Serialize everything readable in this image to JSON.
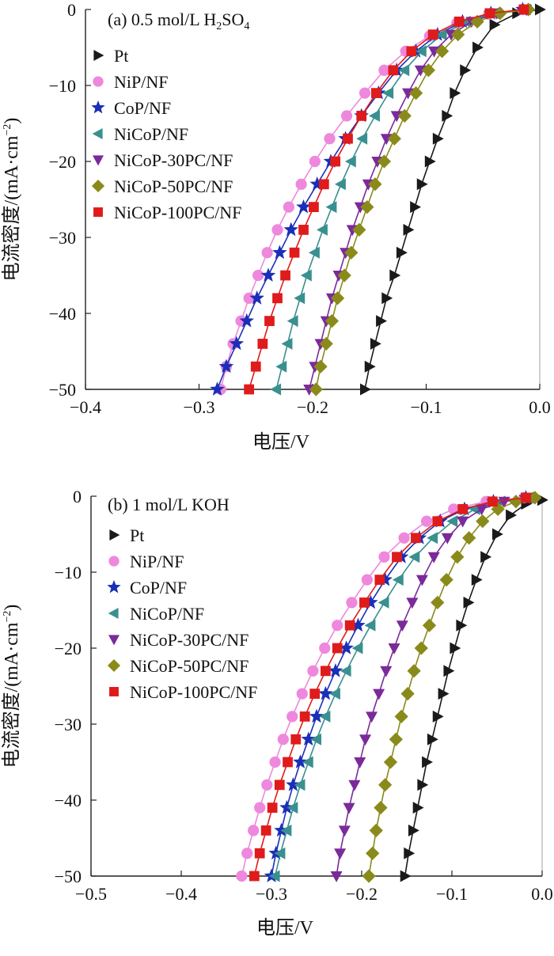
{
  "chart_data": [
    {
      "type": "line",
      "title": "(a) 0.5 mol/L H",
      "title_sub": "2",
      "title_mid": "SO",
      "title_sub2": "4",
      "xlabel": "电压/V",
      "ylabel": "电流密度/(mA·cm",
      "ylabel_sup": "−2",
      "ylabel_end": ")",
      "xlim": [
        -0.4,
        0.0
      ],
      "ylim": [
        -50,
        0
      ],
      "xticks": [
        -0.4,
        -0.3,
        -0.2,
        -0.1,
        0.0
      ],
      "xtick_labels": [
        "−0.4",
        "−0.3",
        "−0.2",
        "−0.1",
        "0.0"
      ],
      "yticks": [
        0,
        -10,
        -20,
        -30,
        -40,
        -50
      ],
      "ytick_labels": [
        "0",
        "−10",
        "−20",
        "−30",
        "−40",
        "−50"
      ],
      "legend_position": "top-left",
      "series": [
        {
          "name": "Pt",
          "color": "#1a1a1a",
          "marker": "triangle-right",
          "x": [
            -0.154,
            -0.15,
            -0.145,
            -0.14,
            -0.135,
            -0.128,
            -0.122,
            -0.116,
            -0.11,
            -0.104,
            -0.097,
            -0.09,
            -0.082,
            -0.075,
            -0.066,
            -0.055,
            -0.04,
            -0.02,
            0.0
          ],
          "y": [
            -50,
            -47,
            -44,
            -41,
            -38,
            -35,
            -32,
            -29,
            -26,
            -23,
            -20,
            -17,
            -14,
            -11,
            -8,
            -5,
            -2,
            -0.5,
            0
          ]
        },
        {
          "name": "NiP/NF",
          "color": "#ee88dd",
          "marker": "circle",
          "x": [
            -0.281,
            -0.276,
            -0.27,
            -0.263,
            -0.256,
            -0.248,
            -0.24,
            -0.231,
            -0.221,
            -0.21,
            -0.198,
            -0.185,
            -0.17,
            -0.154,
            -0.137,
            -0.118,
            -0.097,
            -0.073,
            -0.045,
            -0.015
          ],
          "y": [
            -50,
            -47,
            -44,
            -41,
            -38,
            -35,
            -32,
            -29,
            -26,
            -23,
            -20,
            -17,
            -14,
            -11,
            -8,
            -5.5,
            -3.5,
            -1.8,
            -0.6,
            0
          ]
        },
        {
          "name": "CoP/NF",
          "color": "#1a2fb8",
          "marker": "star",
          "x": [
            -0.284,
            -0.276,
            -0.267,
            -0.258,
            -0.249,
            -0.239,
            -0.229,
            -0.219,
            -0.208,
            -0.196,
            -0.184,
            -0.171,
            -0.157,
            -0.142,
            -0.126,
            -0.109,
            -0.09,
            -0.068,
            -0.043,
            -0.015
          ],
          "y": [
            -50,
            -47,
            -44,
            -41,
            -38,
            -35,
            -32,
            -29,
            -26,
            -23,
            -20,
            -17,
            -14,
            -11,
            -8,
            -5.5,
            -3.3,
            -1.6,
            -0.5,
            0
          ]
        },
        {
          "name": "NiCoP/NF",
          "color": "#3a8f8f",
          "marker": "triangle-left",
          "x": [
            -0.232,
            -0.227,
            -0.222,
            -0.217,
            -0.211,
            -0.205,
            -0.198,
            -0.191,
            -0.183,
            -0.175,
            -0.166,
            -0.156,
            -0.145,
            -0.133,
            -0.119,
            -0.104,
            -0.086,
            -0.065,
            -0.04,
            -0.012
          ],
          "y": [
            -50,
            -47,
            -44,
            -41,
            -38,
            -35,
            -32,
            -29,
            -26,
            -23,
            -20,
            -17,
            -14,
            -11,
            -8,
            -5.5,
            -3.3,
            -1.6,
            -0.5,
            0
          ]
        },
        {
          "name": "NiCoP-30PC/NF",
          "color": "#7b2a9a",
          "marker": "triangle-down",
          "x": [
            -0.203,
            -0.198,
            -0.193,
            -0.188,
            -0.183,
            -0.177,
            -0.171,
            -0.165,
            -0.158,
            -0.151,
            -0.143,
            -0.135,
            -0.126,
            -0.116,
            -0.105,
            -0.093,
            -0.078,
            -0.06,
            -0.038,
            -0.012
          ],
          "y": [
            -50,
            -47,
            -44,
            -41,
            -38,
            -35,
            -32,
            -29,
            -26,
            -23,
            -20,
            -17,
            -14,
            -11,
            -8,
            -5.5,
            -3.3,
            -1.6,
            -0.5,
            0
          ]
        },
        {
          "name": "NiCoP-50PC/NF",
          "color": "#8a8a1a",
          "marker": "diamond",
          "x": [
            -0.197,
            -0.193,
            -0.188,
            -0.183,
            -0.178,
            -0.172,
            -0.166,
            -0.159,
            -0.152,
            -0.145,
            -0.137,
            -0.128,
            -0.119,
            -0.109,
            -0.098,
            -0.086,
            -0.072,
            -0.055,
            -0.035,
            -0.01
          ],
          "y": [
            -50,
            -47,
            -44,
            -41,
            -38,
            -35,
            -32,
            -29,
            -26,
            -23,
            -20,
            -17,
            -14,
            -11,
            -8,
            -5.5,
            -3.3,
            -1.6,
            -0.5,
            0
          ]
        },
        {
          "name": "NiCoP-100PC/NF",
          "color": "#e01b1b",
          "marker": "square",
          "x": [
            -0.256,
            -0.25,
            -0.244,
            -0.238,
            -0.231,
            -0.224,
            -0.216,
            -0.208,
            -0.199,
            -0.19,
            -0.18,
            -0.169,
            -0.157,
            -0.144,
            -0.129,
            -0.113,
            -0.094,
            -0.071,
            -0.044,
            -0.014
          ],
          "y": [
            -50,
            -47,
            -44,
            -41,
            -38,
            -35,
            -32,
            -29,
            -26,
            -23,
            -20,
            -17,
            -14,
            -11,
            -8,
            -5.5,
            -3.3,
            -1.6,
            -0.5,
            0
          ]
        }
      ]
    },
    {
      "type": "line",
      "title": "(b) 1 mol/L KOH",
      "xlabel": "电压/V",
      "ylabel": "电流密度/(mA·cm",
      "ylabel_sup": "−2",
      "ylabel_end": ")",
      "xlim": [
        -0.5,
        0.0
      ],
      "ylim": [
        -50,
        0
      ],
      "xticks": [
        -0.5,
        -0.4,
        -0.3,
        -0.2,
        -0.1,
        0.0
      ],
      "xtick_labels": [
        "−0.5",
        "−0.4",
        "−0.3",
        "−0.2",
        "−0.1",
        "0.0"
      ],
      "yticks": [
        0,
        -10,
        -20,
        -30,
        -40,
        -50
      ],
      "ytick_labels": [
        "0",
        "−10",
        "−20",
        "−30",
        "−40",
        "−50"
      ],
      "legend_position": "top-left",
      "series": [
        {
          "name": "Pt",
          "color": "#1a1a1a",
          "marker": "triangle-right",
          "x": [
            -0.152,
            -0.148,
            -0.143,
            -0.138,
            -0.133,
            -0.128,
            -0.122,
            -0.116,
            -0.11,
            -0.104,
            -0.097,
            -0.09,
            -0.082,
            -0.073,
            -0.063,
            -0.05,
            -0.035,
            -0.018,
            0.0
          ],
          "y": [
            -50,
            -47,
            -44,
            -41,
            -38,
            -35,
            -32,
            -29,
            -26,
            -23,
            -20,
            -17,
            -14,
            -11,
            -8,
            -5,
            -2.5,
            -1,
            -0.5
          ]
        },
        {
          "name": "NiP/NF",
          "color": "#ee88dd",
          "marker": "circle",
          "x": [
            -0.333,
            -0.327,
            -0.32,
            -0.313,
            -0.305,
            -0.296,
            -0.287,
            -0.277,
            -0.266,
            -0.254,
            -0.241,
            -0.227,
            -0.211,
            -0.194,
            -0.175,
            -0.153,
            -0.128,
            -0.098,
            -0.062,
            -0.02
          ],
          "y": [
            -50,
            -47,
            -44,
            -41,
            -38,
            -35,
            -32,
            -29,
            -26,
            -23,
            -20,
            -17,
            -14,
            -11,
            -8,
            -5.5,
            -3.3,
            -1.7,
            -0.7,
            -0.2
          ]
        },
        {
          "name": "CoP/NF",
          "color": "#1a2fb8",
          "marker": "star",
          "x": [
            -0.3,
            -0.295,
            -0.289,
            -0.283,
            -0.276,
            -0.268,
            -0.259,
            -0.25,
            -0.24,
            -0.229,
            -0.217,
            -0.204,
            -0.19,
            -0.174,
            -0.156,
            -0.136,
            -0.113,
            -0.086,
            -0.054,
            -0.018
          ],
          "y": [
            -50,
            -47,
            -44,
            -41,
            -38,
            -35,
            -32,
            -29,
            -26,
            -23,
            -20,
            -17,
            -14,
            -11,
            -8,
            -5.5,
            -3.3,
            -1.7,
            -0.7,
            -0.2
          ]
        },
        {
          "name": "NiCoP/NF",
          "color": "#3a8f8f",
          "marker": "triangle-left",
          "x": [
            -0.296,
            -0.29,
            -0.283,
            -0.276,
            -0.268,
            -0.259,
            -0.25,
            -0.24,
            -0.229,
            -0.217,
            -0.204,
            -0.19,
            -0.175,
            -0.159,
            -0.141,
            -0.121,
            -0.099,
            -0.074,
            -0.046,
            -0.015
          ],
          "y": [
            -50,
            -47,
            -44,
            -41,
            -38,
            -35,
            -32,
            -29,
            -26,
            -23,
            -20,
            -17,
            -14,
            -11,
            -8,
            -5.5,
            -3.3,
            -1.7,
            -0.7,
            -0.2
          ]
        },
        {
          "name": "NiCoP-30PC/NF",
          "color": "#7b2a9a",
          "marker": "triangle-down",
          "x": [
            -0.228,
            -0.224,
            -0.219,
            -0.214,
            -0.208,
            -0.202,
            -0.196,
            -0.189,
            -0.181,
            -0.173,
            -0.164,
            -0.155,
            -0.144,
            -0.133,
            -0.12,
            -0.105,
            -0.088,
            -0.067,
            -0.042,
            -0.014
          ],
          "y": [
            -50,
            -47,
            -44,
            -41,
            -38,
            -35,
            -32,
            -29,
            -26,
            -23,
            -20,
            -17,
            -14,
            -11,
            -8,
            -5.5,
            -3.3,
            -1.7,
            -0.7,
            -0.2
          ]
        },
        {
          "name": "NiCoP-50PC/NF",
          "color": "#8a8a1a",
          "marker": "diamond",
          "x": [
            -0.192,
            -0.188,
            -0.184,
            -0.179,
            -0.174,
            -0.168,
            -0.162,
            -0.156,
            -0.149,
            -0.142,
            -0.134,
            -0.125,
            -0.116,
            -0.106,
            -0.094,
            -0.081,
            -0.066,
            -0.049,
            -0.029,
            -0.008
          ],
          "y": [
            -50,
            -47,
            -44,
            -41,
            -38,
            -35,
            -32,
            -29,
            -26,
            -23,
            -20,
            -17,
            -14,
            -11,
            -8,
            -5.5,
            -3.3,
            -1.7,
            -0.7,
            -0.2
          ]
        },
        {
          "name": "NiCoP-100PC/NF",
          "color": "#e01b1b",
          "marker": "square",
          "x": [
            -0.319,
            -0.313,
            -0.306,
            -0.299,
            -0.291,
            -0.282,
            -0.273,
            -0.263,
            -0.252,
            -0.24,
            -0.227,
            -0.213,
            -0.197,
            -0.18,
            -0.161,
            -0.14,
            -0.116,
            -0.088,
            -0.055,
            -0.018
          ],
          "y": [
            -50,
            -47,
            -44,
            -41,
            -38,
            -35,
            -32,
            -29,
            -26,
            -23,
            -20,
            -17,
            -14,
            -11,
            -8,
            -5.5,
            -3.3,
            -1.7,
            -0.7,
            -0.2
          ]
        }
      ]
    }
  ]
}
